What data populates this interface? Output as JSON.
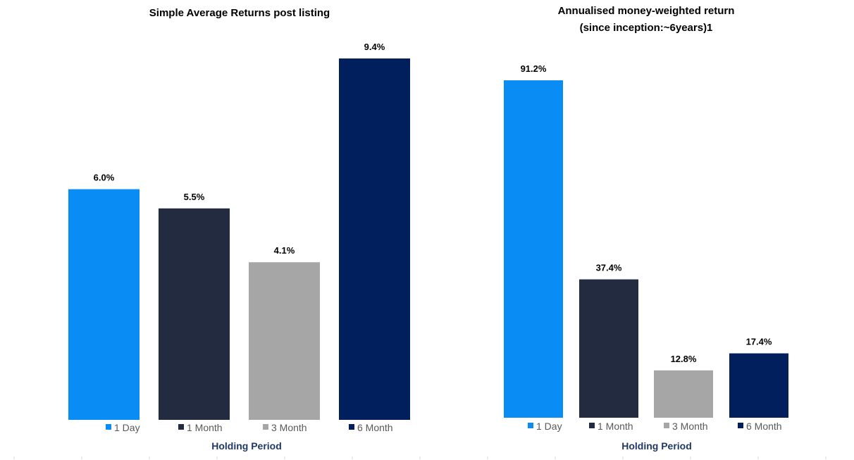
{
  "chart_data": [
    {
      "type": "bar",
      "title": "Simple Average Returns post listing",
      "xlabel": "Holding Period",
      "ylabel": "",
      "categories": [
        "1 Day",
        "1 Month",
        "3 Month",
        "6 Month"
      ],
      "values": [
        6.0,
        5.5,
        4.1,
        9.4
      ],
      "data_labels": [
        "6.0%",
        "5.5%",
        "4.1%",
        "9.4%"
      ],
      "colors": [
        "#0a8cf5",
        "#222b40",
        "#a6a6a6",
        "#001f5c"
      ],
      "ylim": [
        0,
        9.4
      ],
      "grid": false,
      "legend_position": "bottom"
    },
    {
      "type": "bar",
      "title": [
        "Annualised money-weighted return",
        "(since inception:~6years)1"
      ],
      "xlabel": "Holding Period",
      "ylabel": "",
      "categories": [
        "1 Day",
        "1 Month",
        "3 Month",
        "6 Month"
      ],
      "values": [
        91.2,
        37.4,
        12.8,
        17.4
      ],
      "data_labels": [
        "91.2%",
        "37.4%",
        "12.8%",
        "17.4%"
      ],
      "colors": [
        "#0a8cf5",
        "#222b40",
        "#a6a6a6",
        "#001f5c"
      ],
      "ylim": [
        0,
        91.2
      ],
      "grid": false,
      "legend_position": "bottom"
    }
  ]
}
